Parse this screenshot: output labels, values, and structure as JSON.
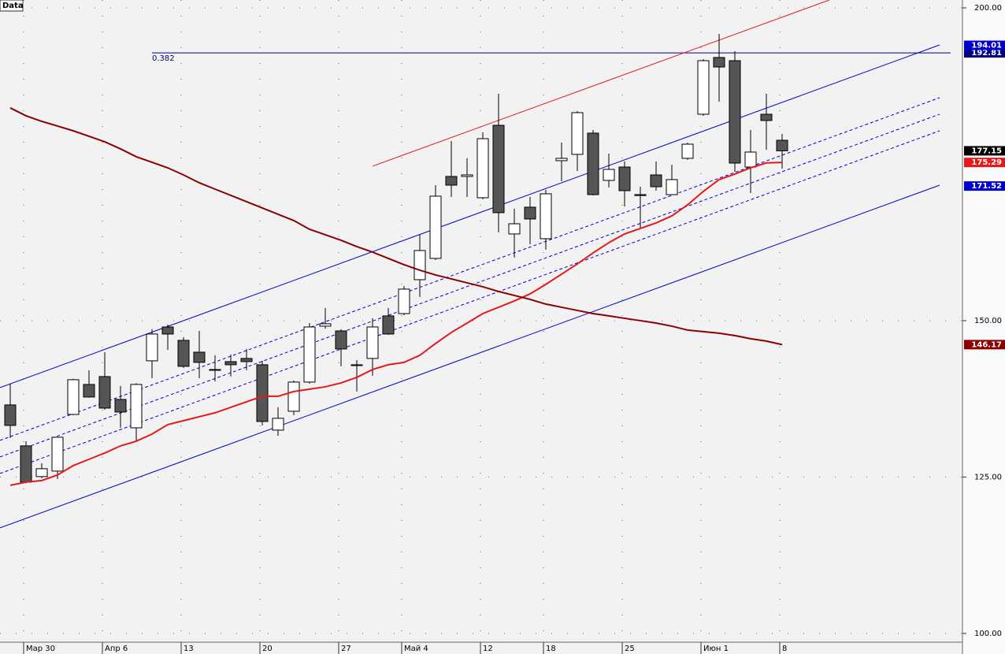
{
  "chart_data": {
    "type": "candlestick",
    "title": "Data",
    "categories": [
      null,
      "Мар 30",
      null,
      null,
      null,
      null,
      "Апр 6",
      null,
      null,
      null,
      null,
      "13",
      null,
      null,
      null,
      null,
      "20",
      null,
      null,
      null,
      null,
      "27",
      null,
      null,
      null,
      "Май 4",
      null,
      null,
      null,
      null,
      "12",
      null,
      null,
      null,
      "18",
      null,
      null,
      null,
      null,
      "25",
      null,
      null,
      null,
      null,
      "Июн 1",
      null,
      null,
      null,
      null,
      "8"
    ],
    "open": [
      136.53,
      129.98,
      125.07,
      125.95,
      135.01,
      139.8,
      141.06,
      137.41,
      132.87,
      143.58,
      148.99,
      146.85,
      144.96,
      142.19,
      143.45,
      143.96,
      142.95,
      132.5,
      135.52,
      140.18,
      149.12,
      148.36,
      142.82,
      143.96,
      150.76,
      151.13,
      156.55,
      159.95,
      173.05,
      173.05,
      169.65,
      181.23,
      163.86,
      168.14,
      163.1,
      175.57,
      176.58,
      179.98,
      172.42,
      174.56,
      170.15,
      173.3,
      170.15,
      175.95,
      183.0,
      192.07,
      191.56,
      174.56,
      183.0,
      178.84
    ],
    "high": [
      139.93,
      130.73,
      127.21,
      131.5,
      140.7,
      142.07,
      144.96,
      139.55,
      140.0,
      148.62,
      149.37,
      147.36,
      148.36,
      144.46,
      144.59,
      145.47,
      143.58,
      136.15,
      140.43,
      149.62,
      152.02,
      148.62,
      143.7,
      150.38,
      152.02,
      155.54,
      163.73,
      171.66,
      178.72,
      175.95,
      180.1,
      186.27,
      167.89,
      169.77,
      170.91,
      178.46,
      183.5,
      180.48,
      176.7,
      175.44,
      171.41,
      175.44,
      174.94,
      178.46,
      191.81,
      195.84,
      193.07,
      180.48,
      186.27,
      179.85
    ],
    "low": [
      131.24,
      124.0,
      124.81,
      124.69,
      134.9,
      137.7,
      135.77,
      132.87,
      130.73,
      140.81,
      145.34,
      142.45,
      140.81,
      140.3,
      141.06,
      142.07,
      133.25,
      131.61,
      134.9,
      139.93,
      148.74,
      142.7,
      138.67,
      141.19,
      147.74,
      150.88,
      153.78,
      159.7,
      169.77,
      169.77,
      169.4,
      164.11,
      160.08,
      162.22,
      161.34,
      172.29,
      173.93,
      170.0,
      171.29,
      168.26,
      164.74,
      170.78,
      170.1,
      175.7,
      182.75,
      185.01,
      173.8,
      170.4,
      177.33,
      174.31
    ],
    "close": [
      133.25,
      124.18,
      126.33,
      131.36,
      140.56,
      137.79,
      136.02,
      135.39,
      139.8,
      147.86,
      147.86,
      142.7,
      143.33,
      142.07,
      142.95,
      143.45,
      133.88,
      134.39,
      140.18,
      148.99,
      149.5,
      145.47,
      142.95,
      148.99,
      147.86,
      155.04,
      161.21,
      169.9,
      171.66,
      173.3,
      179.09,
      167.26,
      165.49,
      166.25,
      170.28,
      175.95,
      183.25,
      170.15,
      174.18,
      170.78,
      170.0,
      171.41,
      172.55,
      178.21,
      191.56,
      190.55,
      175.19,
      176.95,
      181.99,
      177.15
    ],
    "up_color": "#ffffff",
    "down_color": "#555555",
    "lines": [
      {
        "color": "#e41a1a",
        "values": [
          123.68,
          124.18,
          124.44,
          125.32,
          126.83,
          127.84,
          128.84,
          129.98,
          130.73,
          131.87,
          133.38,
          134.01,
          134.64,
          135.27,
          136.15,
          137.03,
          137.91,
          137.91,
          138.67,
          139.05,
          139.42,
          140.05,
          140.93,
          142.19,
          142.95,
          143.33,
          144.46,
          146.35,
          148.11,
          149.62,
          151.13,
          152.14,
          153.15,
          154.28,
          155.8,
          157.43,
          159.07,
          160.83,
          162.47,
          163.86,
          164.74,
          165.62,
          166.75,
          168.51,
          170.66,
          172.55,
          173.43,
          174.43,
          175.21,
          175.29
        ]
      },
      {
        "color": "#8b0000",
        "values": [
          184.01,
          182.75,
          181.86,
          181.11,
          180.35,
          179.47,
          178.59,
          177.46,
          176.2,
          175.32,
          174.43,
          173.3,
          172.04,
          171.03,
          170.03,
          169.02,
          168.01,
          167.0,
          166.0,
          164.61,
          163.73,
          162.85,
          161.84,
          160.96,
          159.95,
          158.94,
          158.06,
          157.31,
          156.68,
          156.05,
          155.42,
          154.66,
          154.03,
          153.4,
          152.65,
          152.14,
          151.64,
          151.13,
          150.76,
          150.38,
          150.0,
          149.62,
          149.12,
          148.49,
          148.24,
          147.99,
          147.61,
          147.11,
          146.73,
          146.17
        ]
      }
    ],
    "trendlines": [
      {
        "color": "#0000cc",
        "dashed": false,
        "x": [
          -0.65,
          59
        ],
        "y": [
          139.3,
          194.08
        ]
      },
      {
        "color": "#0000cc",
        "dashed": false,
        "x": [
          -0.65,
          59
        ],
        "y": [
          116.88,
          171.66
        ]
      },
      {
        "color": "#0000cc",
        "dashed": true,
        "x": [
          -0.65,
          59
        ],
        "y": [
          130.86,
          185.64
        ]
      },
      {
        "color": "#0000cc",
        "dashed": true,
        "x": [
          -0.65,
          59
        ],
        "y": [
          128.21,
          183.0
        ]
      },
      {
        "color": "#0000cc",
        "dashed": true,
        "x": [
          -0.65,
          59
        ],
        "y": [
          125.57,
          180.35
        ]
      },
      {
        "color": "#e41a1a",
        "dashed": false,
        "x": [
          23,
          52
        ],
        "y": [
          174.69,
          201.26
        ]
      }
    ],
    "fib": {
      "label": "0.382",
      "value": 192.81,
      "x": [
        9,
        59.7
      ],
      "color": "#000080"
    },
    "price_labels": [
      {
        "value": 192.81,
        "color": "#000080"
      },
      {
        "value": 194.01,
        "color": "#0000cc"
      },
      {
        "value": 177.15,
        "color": "#000000"
      },
      {
        "value": 175.29,
        "color": "#e41a1a"
      },
      {
        "value": 171.52,
        "color": "#0000cc"
      },
      {
        "value": 146.17,
        "color": "#8b0000"
      }
    ],
    "ylim": [
      98.6,
      201.26
    ],
    "yticks": [
      {
        "value": 100,
        "label": "100.00"
      },
      {
        "value": 125,
        "label": "125.00"
      },
      {
        "value": 150,
        "label": "150.00"
      },
      {
        "value": 200,
        "label": "200.00"
      }
    ],
    "grid": true
  }
}
